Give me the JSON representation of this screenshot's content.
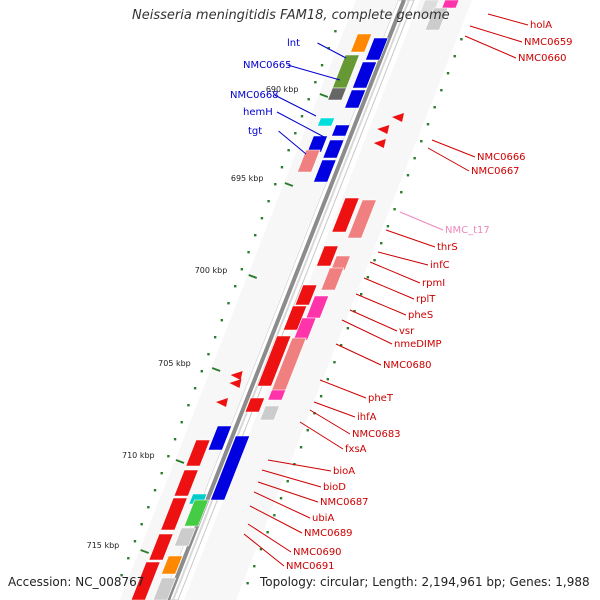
{
  "title": "Neisseria meningitidis FAM18, complete genome",
  "footer": {
    "accession": "Accession: NC_008767",
    "summary": "Topology: circular; Length: 2,194,961 bp; Genes: 1,988"
  },
  "ticks": [
    "690 kbp",
    "695 kbp",
    "700 kbp",
    "705 kbp",
    "710 kbp",
    "715 kbp"
  ],
  "left_labels": [
    "lnt",
    "NMC0665",
    "NMC0668",
    "hemH",
    "tgt"
  ],
  "right_labels": [
    "holA",
    "NMC0659",
    "NMC0660",
    "NMC0666",
    "NMC0667",
    "NMC_t17",
    "thrS",
    "infC",
    "rpmI",
    "rplT",
    "pheS",
    "vsr",
    "nmeDIMP",
    "NMC0680",
    "pheT",
    "ihfA",
    "NMC0683",
    "fxsA",
    "bioA",
    "bioD",
    "NMC0687",
    "ubiA",
    "NMC0689",
    "NMC0690",
    "NMC0691"
  ],
  "colors": {
    "backbone": "#909090",
    "plus_strand": "#0000e0",
    "minus_strand": "#ee1111",
    "left_label_text": "#0000cc",
    "right_label_text": "#cc0000",
    "trna_label": "#ee88bb",
    "tick_mark": "#2a7d2a"
  }
}
